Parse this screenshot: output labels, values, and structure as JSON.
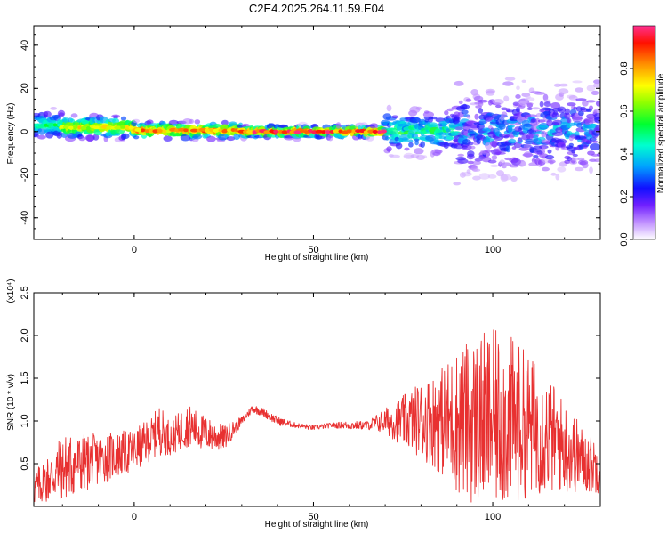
{
  "title": "C2E4.2025.264.11.59.E04",
  "chart_data": [
    {
      "type": "heatmap",
      "xlabel": "Height of straight line (km)",
      "ylabel": "Frequency (Hz)",
      "xlim": [
        -28,
        130
      ],
      "ylim": [
        -50,
        49
      ],
      "xticks": [
        0,
        50,
        100
      ],
      "yticks": [
        -40,
        -20,
        0,
        20,
        40
      ],
      "colorbar": {
        "label": "Normalized spectral amplitude",
        "range": [
          0,
          1
        ],
        "ticks": [
          "0.0",
          "0.2",
          "0.4",
          "0.6",
          "0.8"
        ],
        "colormap": [
          "#ffffff",
          "#b060ff",
          "#5000ff",
          "#0000ff",
          "#00c0ff",
          "#00ffc0",
          "#00ff00",
          "#c0ff00",
          "#ffff00",
          "#ff8000",
          "#ff0000",
          "#ff3090"
        ]
      },
      "bands": [
        {
          "x": [
            -28,
            -20
          ],
          "center_hz": 3,
          "halfwidth_hz": 5,
          "peak_amp": 0.55,
          "jitter": "low"
        },
        {
          "x": [
            -20,
            0
          ],
          "center_hz": 2,
          "halfwidth_hz": 4,
          "peak_amp": 0.8,
          "jitter": "low"
        },
        {
          "x": [
            0,
            30
          ],
          "center_hz": 0.5,
          "halfwidth_hz": 3,
          "peak_amp": 0.9,
          "jitter": "low"
        },
        {
          "x": [
            30,
            70
          ],
          "center_hz": 0,
          "halfwidth_hz": 2,
          "peak_amp": 1.0,
          "jitter": "low"
        },
        {
          "x": [
            70,
            90
          ],
          "center_hz": 0,
          "halfwidth_hz": 8,
          "peak_amp": 0.6,
          "jitter": "medium"
        },
        {
          "x": [
            90,
            130
          ],
          "center_hz": 0,
          "halfwidth_hz": 15,
          "peak_amp": 0.45,
          "jitter": "high"
        }
      ]
    },
    {
      "type": "line",
      "xlabel": "Height of straight line (km)",
      "ylabel": "SNR (10 * v/v)",
      "yscale_label": "(x10⁴)",
      "xlim": [
        -28,
        130
      ],
      "ylim": [
        0,
        2.5
      ],
      "xticks": [
        0,
        50,
        100
      ],
      "yticks": [
        0.5,
        1.0,
        1.5,
        2.0,
        2.5
      ],
      "series_color": "#e83030",
      "envelope": {
        "x": [
          -28,
          -20,
          -10,
          0,
          5,
          7,
          10,
          15,
          20,
          25,
          30,
          33,
          36,
          40,
          45,
          50,
          55,
          60,
          65,
          70,
          75,
          80,
          85,
          90,
          95,
          100,
          105,
          110,
          115,
          120,
          125,
          130
        ],
        "mean": [
          0.2,
          0.45,
          0.55,
          0.65,
          0.8,
          0.9,
          0.8,
          0.95,
          0.85,
          0.8,
          1.0,
          1.15,
          1.1,
          1.0,
          0.95,
          0.92,
          0.95,
          0.95,
          0.95,
          1.0,
          1.0,
          1.02,
          1.0,
          1.0,
          1.0,
          1.02,
          1.0,
          0.95,
          0.85,
          0.7,
          0.55,
          0.45
        ],
        "amp": [
          0.2,
          0.4,
          0.3,
          0.25,
          0.25,
          0.3,
          0.2,
          0.25,
          0.2,
          0.15,
          0.05,
          0.05,
          0.05,
          0.05,
          0.03,
          0.03,
          0.03,
          0.05,
          0.05,
          0.15,
          0.3,
          0.45,
          0.6,
          0.85,
          1.0,
          1.05,
          1.0,
          0.85,
          0.7,
          0.55,
          0.4,
          0.3
        ]
      }
    }
  ]
}
